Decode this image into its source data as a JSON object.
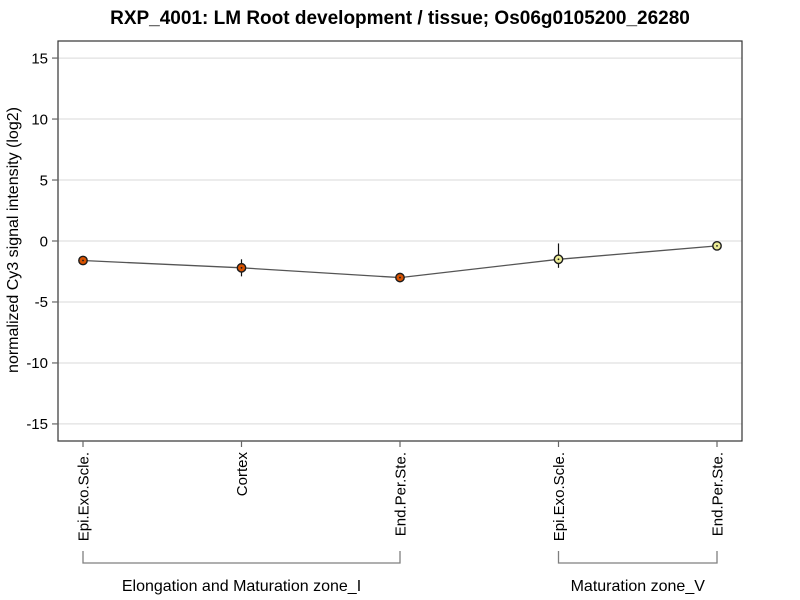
{
  "chart_data": {
    "type": "line",
    "title": "RXP_4001: LM Root development / tissue; Os06g0105200_26280",
    "ylabel": "normalized Cy3 signal intensity (log2)",
    "xlabel": "",
    "ylim": [
      -16.4,
      16.4
    ],
    "yticks": [
      -15,
      -10,
      -5,
      0,
      5,
      10,
      15
    ],
    "grid": true,
    "legend": "none",
    "categories": [
      "Epi.Exo.Scle.",
      "Cortex",
      "End.Per.Ste.",
      "Epi.Exo.Scle.",
      "End.Per.Ste."
    ],
    "series": [
      {
        "name": "normalized Cy3 signal intensity",
        "values": [
          -1.6,
          -2.2,
          -3.0,
          -1.5,
          -0.4
        ],
        "errors": [
          null,
          [
            -1.5,
            -2.9
          ],
          null,
          [
            -0.2,
            -2.2
          ],
          null
        ]
      }
    ],
    "point_fills": [
      "#d85200",
      "#d85200",
      "#d85200",
      "#ebeb96",
      "#ebeb96"
    ],
    "groups": [
      {
        "label": "Elongation and Maturation zone_I",
        "from": 0,
        "to": 2
      },
      {
        "label": "Maturation zone_V",
        "from": 3,
        "to": 4
      }
    ],
    "colors": {
      "point_border": "#1c1c1c",
      "point_center_dot": "#1c1c1c",
      "line": "#555555",
      "grid": "#d9d9d9",
      "axis": "#333333",
      "tick": "#666666",
      "error_bar": "#111111",
      "bracket": "#7f7f7f",
      "background": "#ffffff"
    }
  }
}
